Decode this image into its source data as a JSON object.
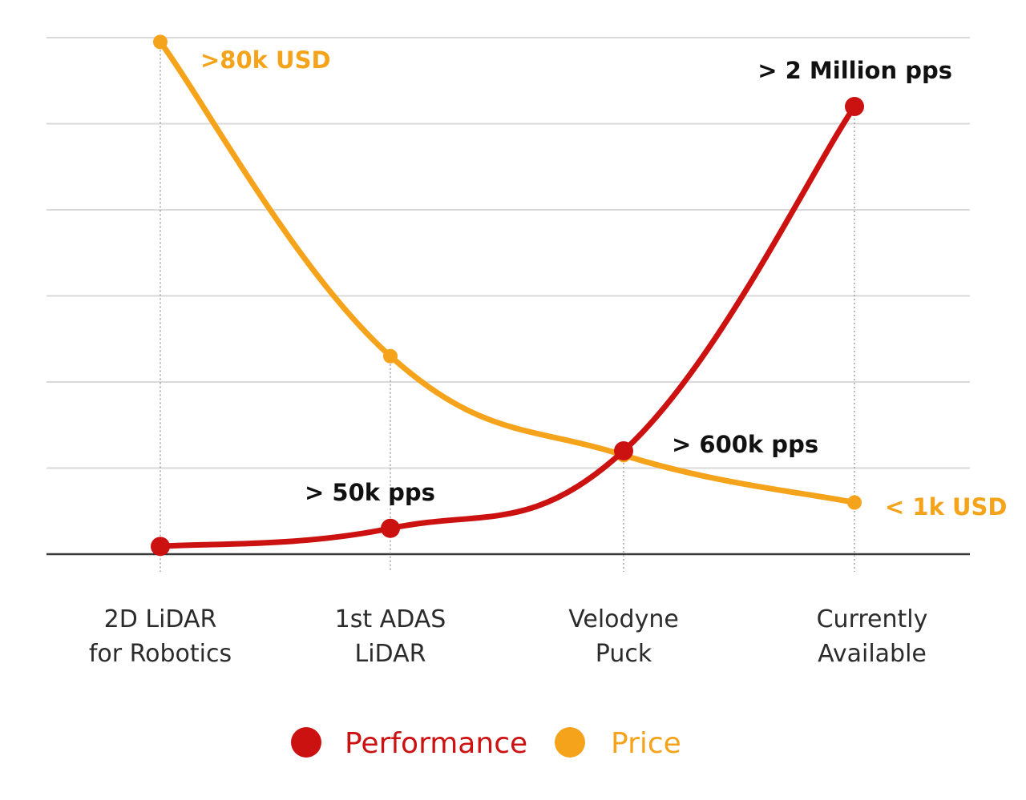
{
  "chart_data": {
    "type": "line",
    "categories": [
      "2D LiDAR\nfor Robotics",
      "1st ADAS\nLiDAR",
      "Velodyne\nPuck",
      "Currently\nAvailable"
    ],
    "y_gridlines": 7,
    "grid": true,
    "legend_position": "bottom-center",
    "series": [
      {
        "name": "Performance",
        "color": "#cc1111",
        "values": [
          0.09,
          0.3,
          1.2,
          5.2
        ],
        "point_size": "large",
        "labels": [
          "",
          "> 50k pps",
          "> 600k pps",
          "> 2 Million pps"
        ]
      },
      {
        "name": "Price",
        "color": "#f5a31a",
        "values": [
          5.95,
          2.3,
          1.15,
          0.6
        ],
        "point_size": "small",
        "labels": [
          ">80k USD",
          "",
          "",
          "< 1k USD"
        ]
      }
    ]
  }
}
